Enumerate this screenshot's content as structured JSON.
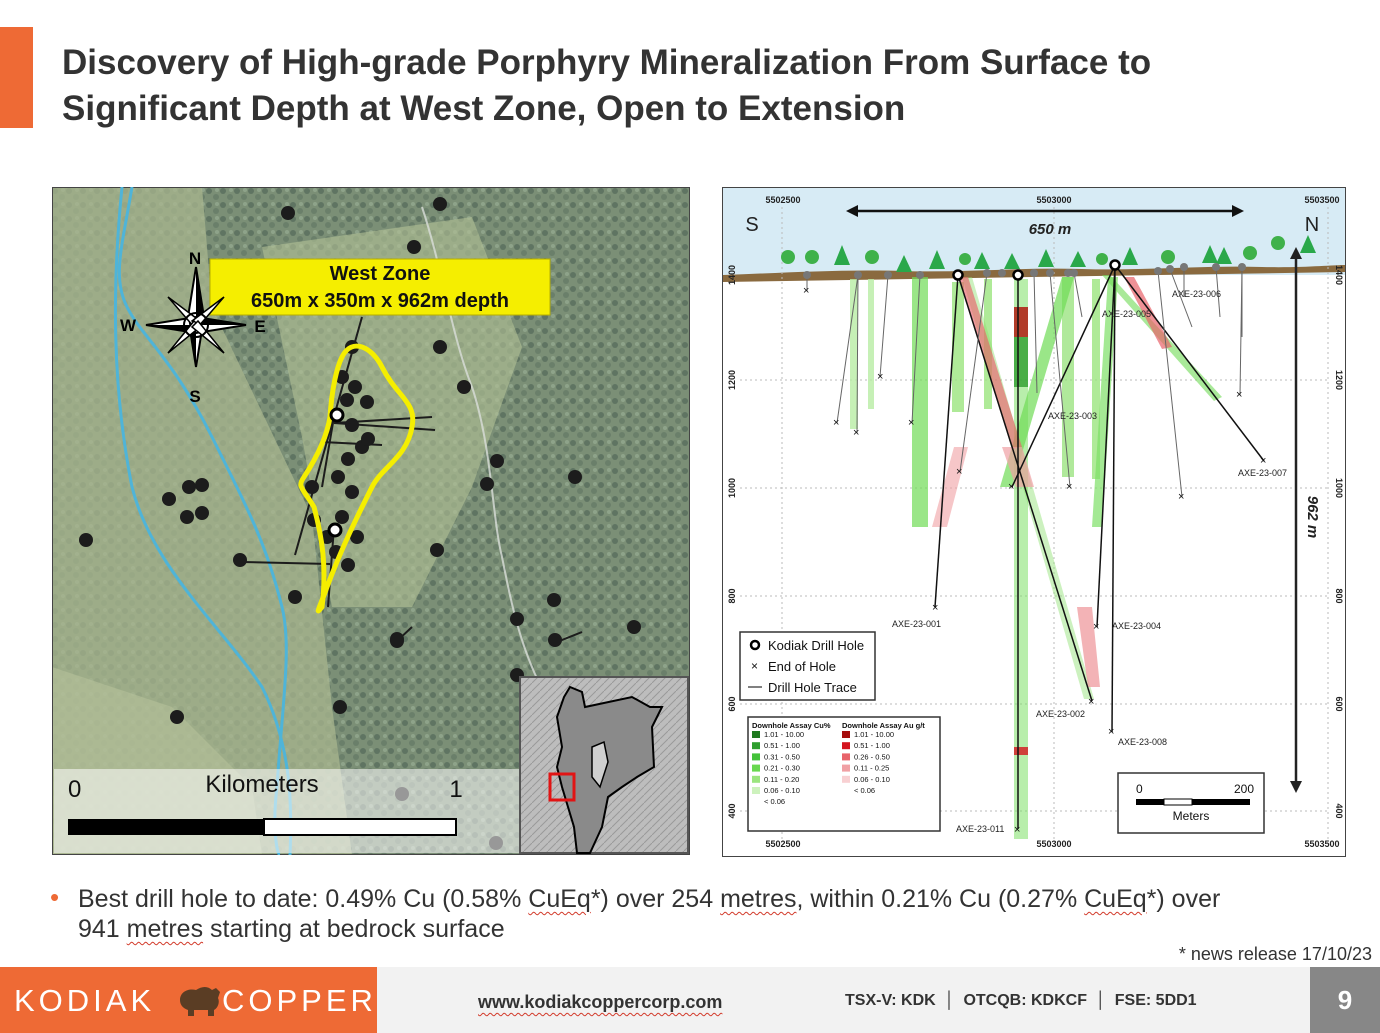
{
  "slide": {
    "title_line1": "Discovery of High-grade Porphyry Mineralization From Surface to",
    "title_line2": "Significant Depth at West Zone, Open to Extension",
    "page_number": "9"
  },
  "map": {
    "zone_label_line1": "West Zone",
    "zone_label_line2": "650m x 350m x 962m depth",
    "compass": {
      "n": "N",
      "s": "S",
      "e": "E",
      "w": "W"
    },
    "scale_label": "Kilometers",
    "scale_start": "0",
    "scale_end": "1"
  },
  "section": {
    "easting_labels": [
      "5502500",
      "5503000",
      "5503500"
    ],
    "elevation_labels": [
      "1400",
      "1200",
      "1000",
      "800",
      "600",
      "400"
    ],
    "direction_left": "S",
    "direction_right": "N",
    "width_label": "650 m",
    "depth_label": "962 m",
    "hole_labels": [
      "AXE-23-001",
      "AXE-23-002",
      "AXE-23-003",
      "AXE-23-004",
      "AXE-23-005",
      "AXE-23-006",
      "AXE-23-007",
      "AXE-23-008",
      "AXE-23-011"
    ],
    "legend": {
      "items": [
        "Kodiak Drill Hole",
        "End of Hole",
        "Drill Hole Trace"
      ]
    },
    "assay_legend": {
      "cu_title": "Downhole Assay Cu%",
      "au_title": "Downhole Assay Au g/t",
      "cu_ranges": [
        "1.01 - 10.00",
        "0.51 - 1.00",
        "0.31 - 0.50",
        "0.21 - 0.30",
        "0.11 - 0.20",
        "0.06 - 0.10",
        "< 0.06"
      ],
      "au_ranges": [
        "1.01 - 10.00",
        "0.51 - 1.00",
        "0.26 - 0.50",
        "0.11 - 0.25",
        "0.06 - 0.10",
        "< 0.06"
      ],
      "cu_colors": [
        "#1f7a1f",
        "#2e9e2e",
        "#44c23a",
        "#69d84f",
        "#9be57e",
        "#cdf2bd"
      ],
      "au_colors": [
        "#a60d0d",
        "#d4141e",
        "#e8636a",
        "#f0a0a4",
        "#f8d0d2"
      ]
    },
    "scale": {
      "start": "0",
      "end": "200",
      "unit": "Meters"
    }
  },
  "bullet": {
    "seg1": "Best drill hole to date: 0.49% Cu (0.58% ",
    "seg2": "CuEq",
    "seg3": "*) over 254 ",
    "seg4": "metres",
    "seg5": ", within 0.21% Cu (0.27% ",
    "seg6": "CuEq",
    "seg7": "*) over",
    "seg8": "941 ",
    "seg9": "metres",
    "seg10": " starting at bedrock surface"
  },
  "footnote": "* news release 17/10/23",
  "footer": {
    "logo_left": "KODIAK",
    "logo_right": "COPPER",
    "url": "www.kodiakcoppercorp.com",
    "tickers": "TSX-V: KDK  │  OTCQB: KDKCF  │  FSE: 5DD1"
  },
  "colors": {
    "accent": "#ee6a35",
    "zone_outline": "#f5ee00",
    "river": "#4fb4d8"
  }
}
